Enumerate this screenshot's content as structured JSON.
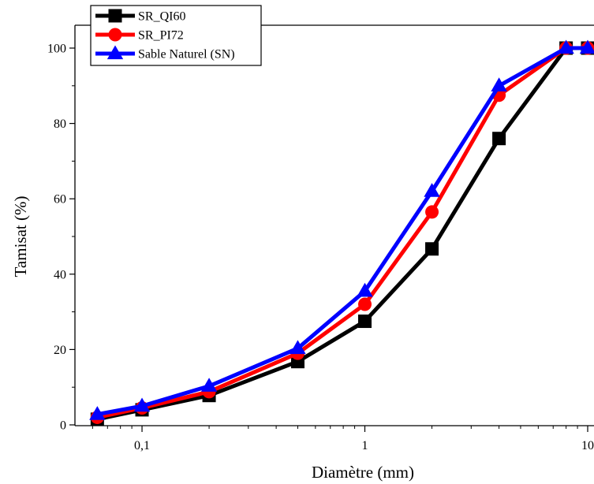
{
  "chart_data": {
    "type": "line",
    "xlabel": "Diamètre (mm)",
    "ylabel": "Tamisat (%)",
    "xscale": "log",
    "xlim": [
      0.05,
      10
    ],
    "ylim": [
      0,
      100
    ],
    "x_ticks": [
      {
        "value": 0.1,
        "label": "0,1"
      },
      {
        "value": 1,
        "label": "1"
      },
      {
        "value": 10,
        "label": "10"
      }
    ],
    "y_ticks": [
      {
        "value": 0,
        "label": "0"
      },
      {
        "value": 20,
        "label": "20"
      },
      {
        "value": 40,
        "label": "40"
      },
      {
        "value": 60,
        "label": "60"
      },
      {
        "value": 80,
        "label": "80"
      },
      {
        "value": 100,
        "label": "100"
      }
    ],
    "x": [
      0.063,
      0.1,
      0.2,
      0.5,
      1,
      2,
      4,
      8,
      10
    ],
    "series": [
      {
        "name": "SR_QI60",
        "color": "#000000",
        "marker": "square",
        "values": [
          1.5,
          4,
          7.8,
          16.8,
          27.5,
          46.7,
          76,
          100,
          100
        ]
      },
      {
        "name": "SR_PI72",
        "color": "#ff0000",
        "marker": "circle",
        "values": [
          2,
          4.5,
          8.8,
          19,
          32,
          56.5,
          87.5,
          100,
          100
        ]
      },
      {
        "name": "Sable Naturel (SN)",
        "color": "#0000ff",
        "marker": "triangle",
        "values": [
          2.8,
          5,
          10.3,
          20.3,
          35.5,
          62,
          90,
          100,
          100
        ]
      }
    ],
    "legend": {
      "placement": "top-left"
    },
    "grid": false
  }
}
